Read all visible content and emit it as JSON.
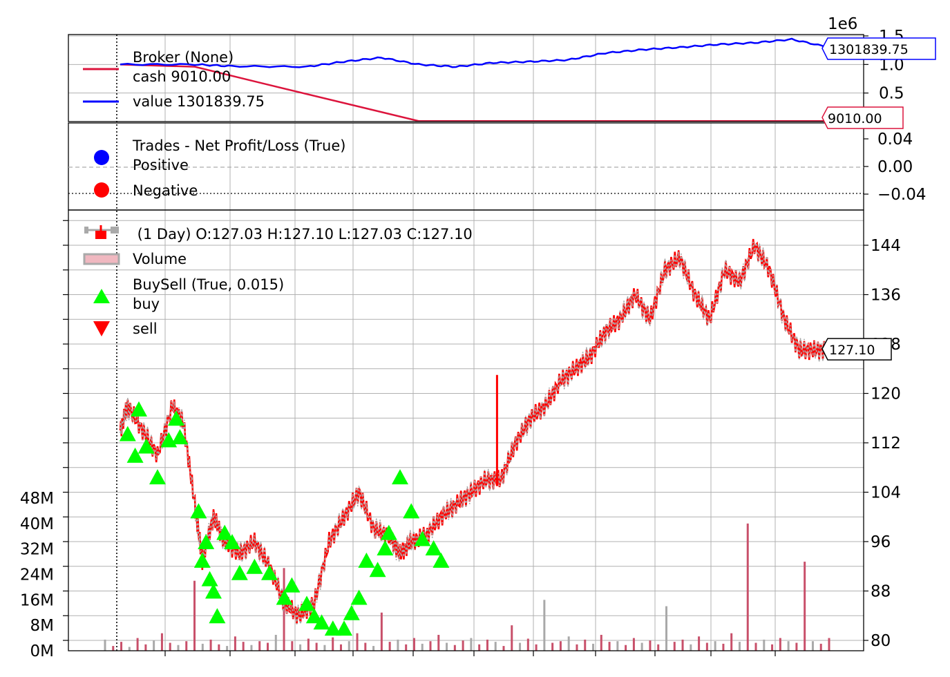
{
  "chart_data": [
    {
      "type": "line",
      "panel": "broker",
      "legend_title": "Broker (None)",
      "offset_text": "1e6",
      "ylim": [
        0,
        1.5
      ],
      "y_ticks": [
        "0",
        "0.5",
        "1.0",
        "1.5"
      ],
      "series": [
        {
          "name": "cash 9010.00",
          "color": "#dc143c",
          "x": [
            0.05,
            0.15,
            0.25,
            0.45,
            1.0
          ],
          "y": [
            1.0,
            0.96,
            0.64,
            0.009,
            0.009
          ]
        },
        {
          "name": "value 1301839.75",
          "color": "#0000ff",
          "x": [
            0.05,
            0.15,
            0.2,
            0.3,
            0.35,
            0.4,
            0.45,
            0.5,
            0.55,
            0.6,
            0.65,
            0.7,
            0.75,
            0.8,
            0.85,
            0.9,
            0.95,
            1.0
          ],
          "y": [
            1.0,
            1.0,
            0.97,
            0.96,
            1.05,
            1.12,
            1.0,
            0.96,
            1.03,
            1.05,
            1.08,
            1.2,
            1.26,
            1.3,
            1.35,
            1.38,
            1.44,
            1.3
          ]
        }
      ],
      "last_value_labels": [
        "1301839.75",
        "9010.00"
      ]
    },
    {
      "type": "scatter",
      "panel": "trades",
      "legend_title": "Trades - Net Profit/Loss (True)",
      "ylim": [
        -0.05,
        0.05
      ],
      "y_ticks": [
        "-0.04",
        "0.00",
        "0.04"
      ],
      "series": [
        {
          "name": "Positive",
          "color": "#0000ff",
          "values": []
        },
        {
          "name": "Negative",
          "color": "#ff0000",
          "values": []
        }
      ]
    },
    {
      "type": "line",
      "panel": "price",
      "ohlc_title": " (1 Day) O:127.03 H:127.10 L:127.03 C:127.10",
      "ylim": [
        79,
        149
      ],
      "y_ticks": [
        "80",
        "88",
        "96",
        "104",
        "112",
        "120",
        "128",
        "136",
        "144"
      ],
      "volume_ticks": [
        "0M",
        "8M",
        "16M",
        "24M",
        "32M",
        "40M",
        "48M"
      ],
      "volume_ylim": [
        0,
        48
      ],
      "last_price_label": "127.10",
      "legend": {
        "price_entry": "",
        "volume": "Volume",
        "buysell_title": "BuySell (True, 0.015)",
        "buy": "buy",
        "sell": "sell"
      },
      "colors": {
        "up": "#a9a9a9",
        "down": "#ff0000",
        "buy": "#00ff00",
        "sell": "#ff0000",
        "volume": "#c8506a"
      },
      "price_path": {
        "x": [
          0.05,
          0.06,
          0.08,
          0.1,
          0.12,
          0.135,
          0.15,
          0.16,
          0.175,
          0.19,
          0.21,
          0.23,
          0.25,
          0.27,
          0.29,
          0.31,
          0.33,
          0.35,
          0.37,
          0.39,
          0.41,
          0.425,
          0.44,
          0.46,
          0.48,
          0.5,
          0.52,
          0.54,
          0.56,
          0.58,
          0.6,
          0.62,
          0.64,
          0.66,
          0.68,
          0.7,
          0.72,
          0.74,
          0.76,
          0.78,
          0.8,
          0.82,
          0.84,
          0.86,
          0.88,
          0.9,
          0.92,
          0.94,
          0.96,
          0.98,
          1.0
        ],
        "y": [
          114,
          118,
          114,
          110,
          118,
          115,
          102,
          93,
          100,
          96,
          94,
          96,
          92,
          86,
          84,
          86,
          96,
          100,
          104,
          98,
          97,
          94,
          96,
          97,
          100,
          102,
          104,
          106,
          106,
          112,
          116,
          118,
          122,
          124,
          126,
          130,
          132,
          136,
          132,
          140,
          142,
          136,
          132,
          140,
          138,
          144,
          140,
          132,
          127,
          127,
          127.1
        ]
      },
      "spike_x": 0.555,
      "spike_y": [
        105,
        123
      ],
      "buy_markers": [
        [
          0.06,
          113.5
        ],
        [
          0.07,
          110
        ],
        [
          0.075,
          117.5
        ],
        [
          0.085,
          111.5
        ],
        [
          0.1,
          106.5
        ],
        [
          0.115,
          112.5
        ],
        [
          0.125,
          116
        ],
        [
          0.13,
          113
        ],
        [
          0.155,
          101
        ],
        [
          0.16,
          93
        ],
        [
          0.165,
          96
        ],
        [
          0.17,
          90
        ],
        [
          0.175,
          88
        ],
        [
          0.18,
          84
        ],
        [
          0.19,
          97.5
        ],
        [
          0.2,
          96
        ],
        [
          0.21,
          91
        ],
        [
          0.23,
          92
        ],
        [
          0.25,
          91
        ],
        [
          0.27,
          87
        ],
        [
          0.28,
          89
        ],
        [
          0.3,
          86
        ],
        [
          0.31,
          84
        ],
        [
          0.32,
          83
        ],
        [
          0.335,
          82
        ],
        [
          0.35,
          82
        ],
        [
          0.36,
          84.5
        ],
        [
          0.37,
          87
        ],
        [
          0.38,
          93
        ],
        [
          0.395,
          91.5
        ],
        [
          0.405,
          95
        ],
        [
          0.41,
          97.5
        ],
        [
          0.425,
          106.5
        ],
        [
          0.44,
          101
        ],
        [
          0.455,
          96.5
        ],
        [
          0.47,
          95
        ],
        [
          0.48,
          93
        ]
      ],
      "volume_bars_mm": [
        3.5,
        1.5,
        2.8,
        1.2,
        4.0,
        2.0,
        3.2,
        5.5,
        2.5,
        1.8,
        3.0,
        22.0,
        2.2,
        3.5,
        2.0,
        1.5,
        4.5,
        2.8,
        1.8,
        3.0,
        2.5,
        5.0,
        26.0,
        3.0,
        2.0,
        3.8,
        2.5,
        1.8,
        4.2,
        2.0,
        3.0,
        5.5,
        2.5,
        1.5,
        12.0,
        2.8,
        3.5,
        2.0,
        4.0,
        2.2,
        3.0,
        5.0,
        2.5,
        1.8,
        3.2,
        4.0,
        2.0,
        3.5,
        2.8,
        1.5,
        8.0,
        2.5,
        3.8,
        2.0,
        16.0,
        2.5,
        3.0,
        4.5,
        2.0,
        3.5,
        2.2,
        5.0,
        2.8,
        3.0,
        1.8,
        4.0,
        2.5,
        3.2,
        2.0,
        14.0,
        2.8,
        3.5,
        2.0,
        4.5,
        2.5,
        3.0,
        2.2,
        5.5,
        2.8,
        40.0,
        2.5,
        3.5,
        2.0,
        4.0,
        3.0,
        2.5,
        28.0,
        3.0,
        2.2,
        4.0
      ]
    }
  ]
}
